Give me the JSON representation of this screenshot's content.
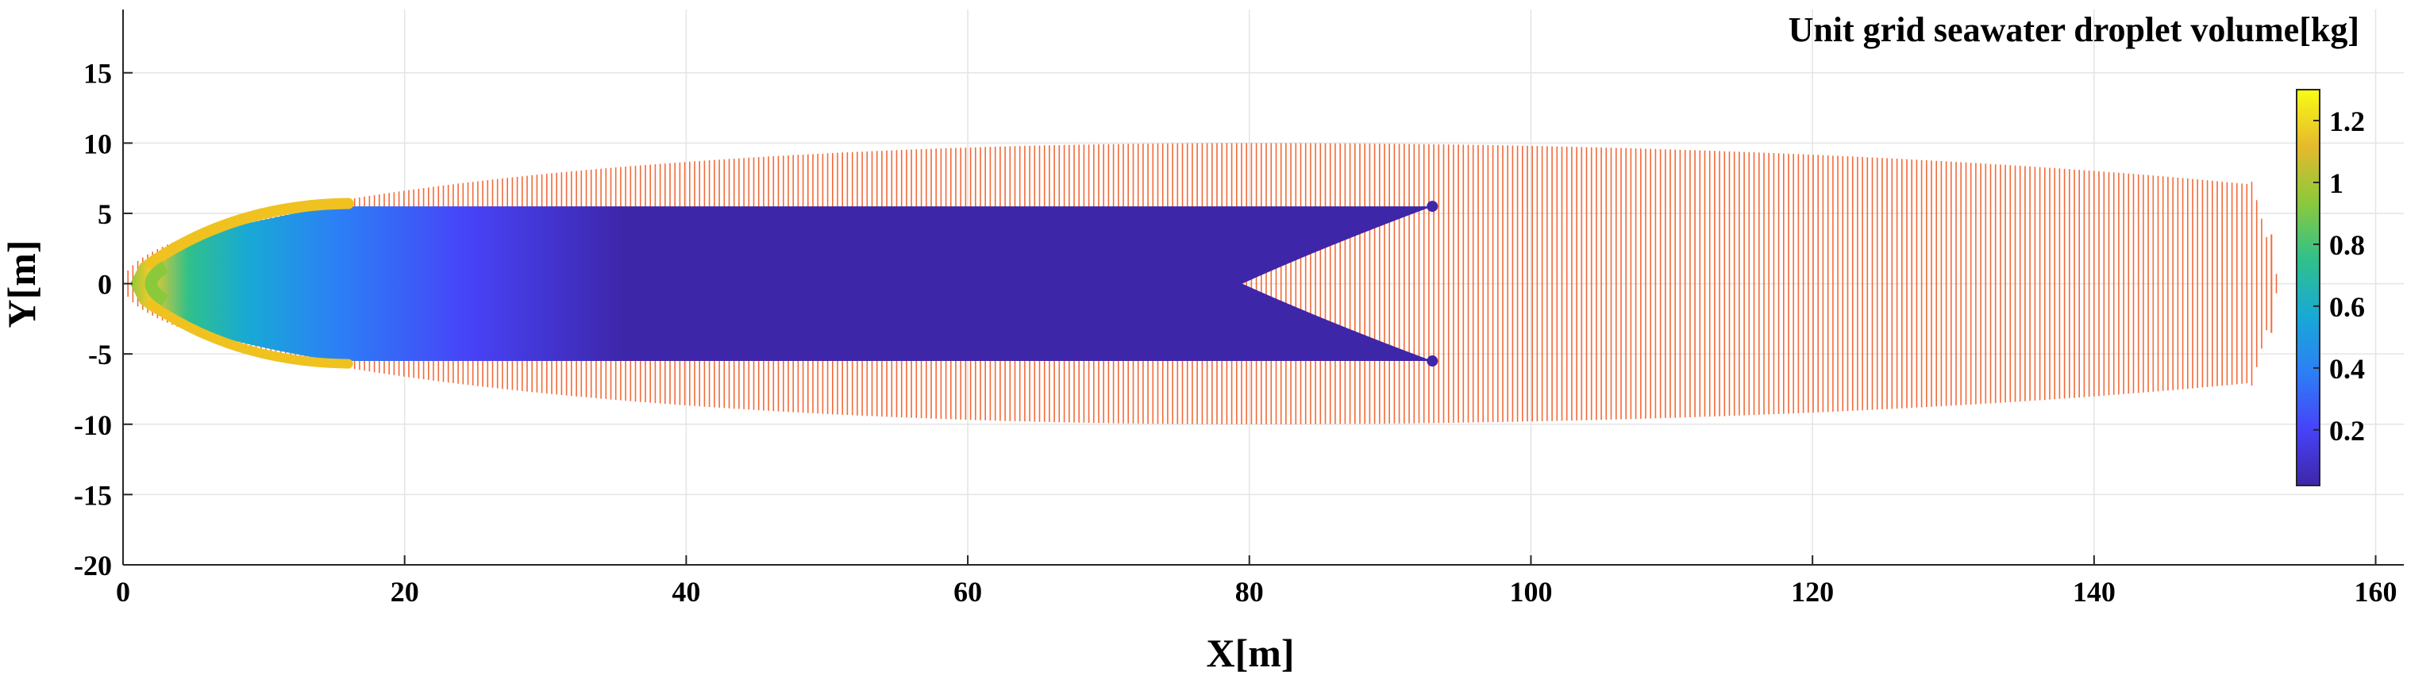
{
  "chart_data": {
    "type": "heatmap",
    "title": "Unit grid seawater droplet volume[kg]",
    "xlabel": "X[m]",
    "ylabel": "Y[m]",
    "xlim": [
      0,
      162
    ],
    "ylim": [
      -20,
      19.5
    ],
    "xticks": [
      0,
      20,
      40,
      60,
      80,
      100,
      120,
      140,
      160
    ],
    "yticks": [
      -20,
      -15,
      -10,
      -5,
      0,
      5,
      10,
      15
    ],
    "grid": true,
    "colorbar": {
      "label": "Unit grid seawater droplet volume[kg]",
      "range": [
        0.02,
        1.3
      ],
      "ticks": [
        0.2,
        0.4,
        0.6,
        0.8,
        1,
        1.2
      ],
      "colormap": "parula",
      "stops": [
        "#3e26a8",
        "#4743f8",
        "#2c7ff6",
        "#18a9d5",
        "#30c08b",
        "#8bc93c",
        "#e6b92d",
        "#f9fb15"
      ]
    },
    "grid_region": {
      "color": "#f26b3a",
      "x_start": 0,
      "x_end": 153,
      "half_width_max": 10,
      "taper_nose_length": 80,
      "tail_start": 151
    },
    "droplet_region": {
      "x_start": 0.5,
      "x_end": 93,
      "half_width": 5.5,
      "notch_vertex_x": 79.5,
      "front_edge_values": [
        1.1,
        1.25
      ],
      "interior_value": 0.05
    }
  }
}
